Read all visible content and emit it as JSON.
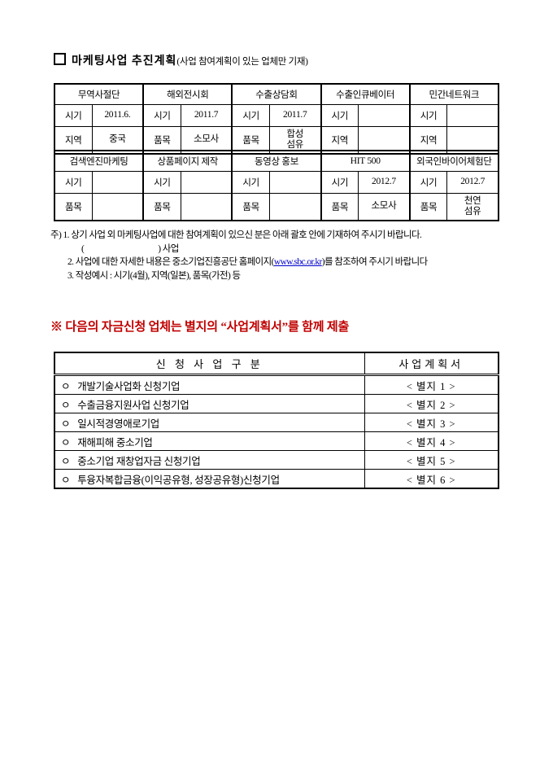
{
  "colors": {
    "notice_red": "#c00000",
    "link_blue": "#0000cc"
  },
  "title": {
    "main": "마케팅사업 추진계획",
    "paren": "(사업 참여계획이 있는 업체만 기재)"
  },
  "marketing_table": {
    "top_groups": [
      {
        "header": "무역사절단",
        "r1_label": "시기",
        "r1_value": "2011.6.",
        "r2_label": "지역",
        "r2_value": "중국"
      },
      {
        "header": "해외전시회",
        "r1_label": "시기",
        "r1_value": "2011.7",
        "r2_label": "품목",
        "r2_value": "소모사"
      },
      {
        "header": "수출상담회",
        "r1_label": "시기",
        "r1_value": "2011.7",
        "r2_label": "품목",
        "r2_value": "합성\n섬유"
      },
      {
        "header": "수출인큐베이터",
        "r1_label": "시기",
        "r1_value": "",
        "r2_label": "지역",
        "r2_value": ""
      },
      {
        "header": "민간네트워크",
        "r1_label": "시기",
        "r1_value": "",
        "r2_label": "지역",
        "r2_value": ""
      }
    ],
    "bottom_groups": [
      {
        "header": "검색엔진마케팅",
        "r1_label": "시기",
        "r1_value": "",
        "r2_label": "품목",
        "r2_value": ""
      },
      {
        "header": "상품페이지 제작",
        "r1_label": "시기",
        "r1_value": "",
        "r2_label": "품목",
        "r2_value": ""
      },
      {
        "header": "동영상 홍보",
        "r1_label": "시기",
        "r1_value": "",
        "r2_label": "품목",
        "r2_value": ""
      },
      {
        "header": "HIT 500",
        "r1_label": "시기",
        "r1_value": "2012.7",
        "r2_label": "품목",
        "r2_value": "소모사"
      },
      {
        "header": "외국인바이어체험단",
        "r1_label": "시기",
        "r1_value": "2012.7",
        "r2_label": "품목",
        "r2_value": "천연\n섬유"
      }
    ]
  },
  "notes": {
    "line1_prefix": "주) 1.",
    "line1_text": "상기 사업 외 마케팅사업에 대한 참여계획이 있으신 분은 아래 괄호 안에 기재하여 주시기 바랍니다.",
    "line1_sub": "(                                        ) 사업",
    "line2_num": "2.",
    "line2_before": "사업에 대한 자세한 내용은 중소기업진흥공단 홈페이지(",
    "line2_link": "www.sbc.or.kr",
    "line2_after": ")를 참조하여 주시기 바랍니다",
    "line3_num": "3.",
    "line3_text": "작성예시 : 시기(4월), 지역(일본), 품목(가전) 등"
  },
  "notice": {
    "symbol": "※",
    "text": "다음의 자금신청 업체는 별지의 “사업계획서”를 함께 제출"
  },
  "submission_table": {
    "headers": [
      "신 청 사 업  구 분",
      "사업계획서"
    ],
    "rows": [
      {
        "bullet": "ㅇ",
        "category": "개발기술사업화 신청기업",
        "form": "< 별지 1 >"
      },
      {
        "bullet": "ㅇ",
        "category": "수출금융지원사업 신청기업",
        "form": "< 별지 2 >"
      },
      {
        "bullet": "ㅇ",
        "category": "일시적경영애로기업",
        "form": "< 별지 3 >"
      },
      {
        "bullet": "ㅇ",
        "category": "재해피해 중소기업",
        "form": "< 별지 4 >"
      },
      {
        "bullet": "ㅇ",
        "category": "중소기업 재창업자금 신청기업",
        "form": "< 별지 5 >"
      },
      {
        "bullet": "ㅇ",
        "category": "투융자복합금융(이익공유형, 성장공유형)신청기업",
        "form": "< 별지 6 >"
      }
    ]
  }
}
